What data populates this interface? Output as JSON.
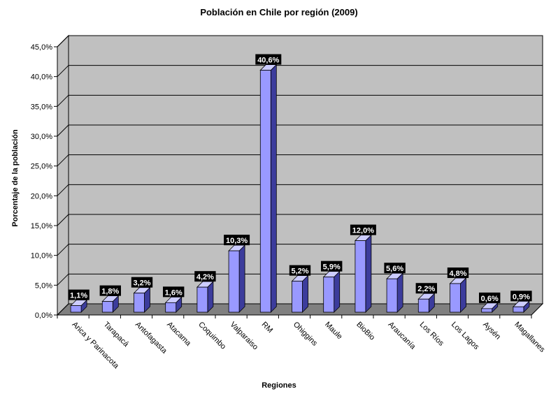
{
  "chart_data": {
    "type": "bar",
    "title": "Población en Chile por región (2009)",
    "xlabel": "Regiones",
    "ylabel": "Porcentaje de la población",
    "categories": [
      "Arica y Parinacota",
      "Tarapacá",
      "Antofagasta",
      "Atacama",
      "Coquimbo",
      "Valparaiso",
      "RM",
      "Ohiggins",
      "Maule",
      "BioBio",
      "Araucanía",
      "Los Ríos",
      "Los Lagos",
      "Aysén",
      "Magallanes"
    ],
    "values": [
      1.1,
      1.8,
      3.2,
      1.6,
      4.2,
      10.3,
      40.6,
      5.2,
      5.9,
      12.0,
      5.6,
      2.2,
      4.8,
      0.6,
      0.9
    ],
    "data_labels": [
      "1,1%",
      "1,8%",
      "3,2%",
      "1,6%",
      "4,2%",
      "10,3%",
      "40,6%",
      "5,2%",
      "5,9%",
      "12,0%",
      "5,6%",
      "2,2%",
      "4,8%",
      "0,6%",
      "0,9%"
    ],
    "ylim": [
      0,
      45
    ],
    "yticks": [
      0,
      5,
      10,
      15,
      20,
      25,
      30,
      35,
      40,
      45
    ],
    "ytick_labels": [
      "0,0%",
      "5,0%",
      "10,0%",
      "15,0%",
      "20,0%",
      "25,0%",
      "30,0%",
      "35,0%",
      "40,0%",
      "45,0%"
    ],
    "grid": true,
    "legend": "none",
    "style": "3d-column",
    "colors": {
      "bar_front": "#9999ff",
      "bar_side": "#3c3c9c",
      "bar_top": "#ccccff",
      "plot_wall": "#c0c0c0",
      "floor": "#808080",
      "label_bg": "#000000",
      "label_text": "#ffffff"
    }
  }
}
